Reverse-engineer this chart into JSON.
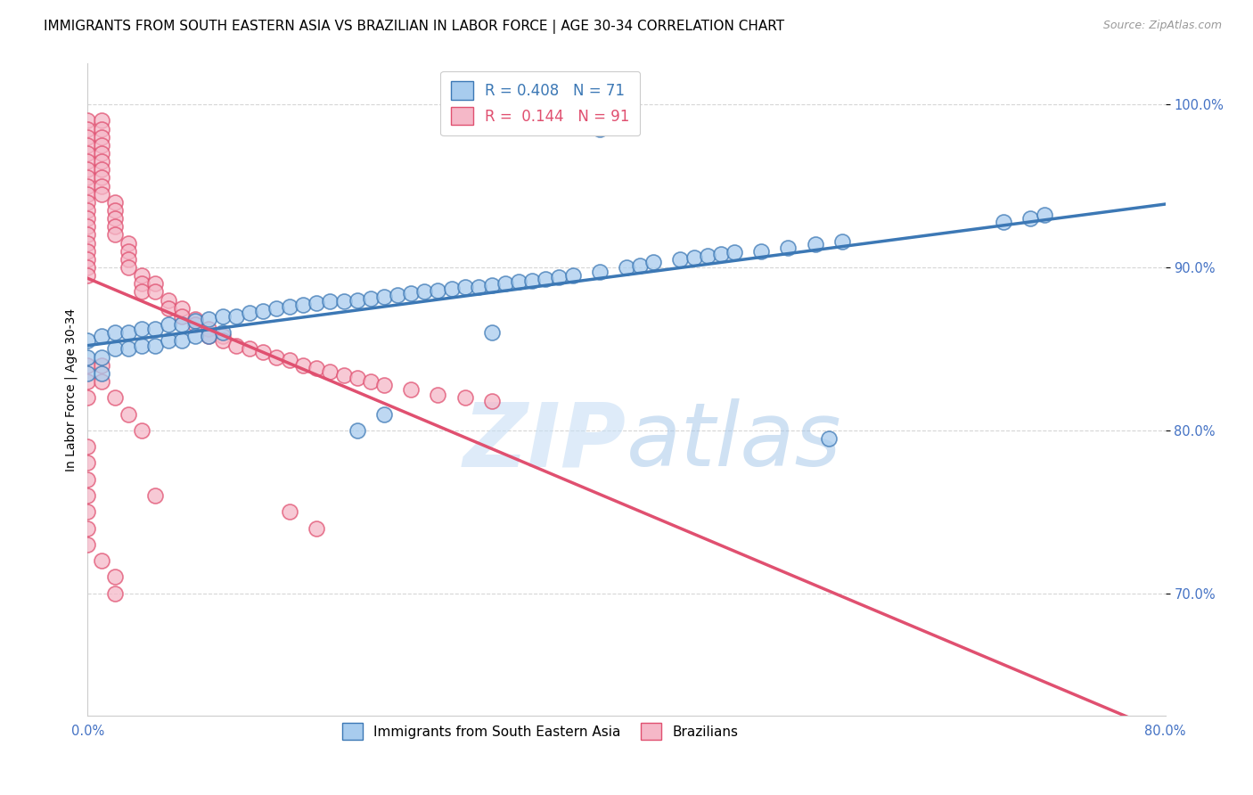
{
  "title": "IMMIGRANTS FROM SOUTH EASTERN ASIA VS BRAZILIAN IN LABOR FORCE | AGE 30-34 CORRELATION CHART",
  "source": "Source: ZipAtlas.com",
  "ylabel": "In Labor Force | Age 30-34",
  "xlim": [
    0.0,
    0.8
  ],
  "ylim": [
    0.625,
    1.025
  ],
  "yticks": [
    0.7,
    0.8,
    0.9,
    1.0
  ],
  "ytick_labels": [
    "70.0%",
    "80.0%",
    "90.0%",
    "100.0%"
  ],
  "xticks": [
    0.0,
    0.1,
    0.2,
    0.3,
    0.4,
    0.5,
    0.6,
    0.7,
    0.8
  ],
  "xtick_labels": [
    "0.0%",
    "",
    "",
    "",
    "",
    "",
    "",
    "",
    "80.0%"
  ],
  "blue_color": "#a8ccee",
  "pink_color": "#f5b8c8",
  "blue_line_color": "#3c78b5",
  "pink_line_color": "#e05070",
  "legend_blue_label": "Immigrants from South Eastern Asia",
  "legend_pink_label": "Brazilians",
  "R_blue": 0.408,
  "N_blue": 71,
  "R_pink": 0.144,
  "N_pink": 91,
  "blue_scatter_x": [
    0.0,
    0.0,
    0.0,
    0.01,
    0.01,
    0.01,
    0.02,
    0.02,
    0.03,
    0.03,
    0.04,
    0.04,
    0.05,
    0.05,
    0.06,
    0.06,
    0.07,
    0.07,
    0.08,
    0.08,
    0.09,
    0.09,
    0.1,
    0.1,
    0.11,
    0.12,
    0.13,
    0.14,
    0.15,
    0.16,
    0.17,
    0.18,
    0.19,
    0.2,
    0.21,
    0.22,
    0.23,
    0.24,
    0.25,
    0.26,
    0.27,
    0.28,
    0.29,
    0.3,
    0.31,
    0.32,
    0.33,
    0.34,
    0.35,
    0.36,
    0.38,
    0.4,
    0.41,
    0.42,
    0.44,
    0.45,
    0.46,
    0.47,
    0.48,
    0.5,
    0.52,
    0.54,
    0.56,
    0.68,
    0.7,
    0.71,
    0.2,
    0.22,
    0.3,
    0.38,
    0.55
  ],
  "blue_scatter_y": [
    0.855,
    0.845,
    0.835,
    0.858,
    0.845,
    0.835,
    0.86,
    0.85,
    0.86,
    0.85,
    0.862,
    0.852,
    0.862,
    0.852,
    0.865,
    0.855,
    0.865,
    0.855,
    0.867,
    0.858,
    0.868,
    0.858,
    0.87,
    0.86,
    0.87,
    0.872,
    0.873,
    0.875,
    0.876,
    0.877,
    0.878,
    0.879,
    0.879,
    0.88,
    0.881,
    0.882,
    0.883,
    0.884,
    0.885,
    0.886,
    0.887,
    0.888,
    0.888,
    0.889,
    0.89,
    0.891,
    0.892,
    0.893,
    0.894,
    0.895,
    0.897,
    0.9,
    0.901,
    0.903,
    0.905,
    0.906,
    0.907,
    0.908,
    0.909,
    0.91,
    0.912,
    0.914,
    0.916,
    0.928,
    0.93,
    0.932,
    0.8,
    0.81,
    0.86,
    0.985,
    0.795
  ],
  "pink_scatter_x": [
    0.0,
    0.0,
    0.0,
    0.0,
    0.0,
    0.0,
    0.0,
    0.0,
    0.0,
    0.0,
    0.0,
    0.0,
    0.0,
    0.0,
    0.0,
    0.0,
    0.0,
    0.0,
    0.0,
    0.0,
    0.01,
    0.01,
    0.01,
    0.01,
    0.01,
    0.01,
    0.01,
    0.01,
    0.01,
    0.01,
    0.02,
    0.02,
    0.02,
    0.02,
    0.02,
    0.03,
    0.03,
    0.03,
    0.03,
    0.04,
    0.04,
    0.04,
    0.05,
    0.05,
    0.06,
    0.06,
    0.07,
    0.07,
    0.08,
    0.08,
    0.09,
    0.09,
    0.1,
    0.1,
    0.11,
    0.12,
    0.13,
    0.14,
    0.15,
    0.16,
    0.17,
    0.18,
    0.19,
    0.2,
    0.21,
    0.22,
    0.24,
    0.26,
    0.28,
    0.3,
    0.0,
    0.0,
    0.0,
    0.01,
    0.01,
    0.02,
    0.03,
    0.04,
    0.0,
    0.0,
    0.0,
    0.0,
    0.0,
    0.0,
    0.0,
    0.01,
    0.02,
    0.02,
    0.05,
    0.15,
    0.17
  ],
  "pink_scatter_y": [
    0.99,
    0.985,
    0.98,
    0.975,
    0.97,
    0.965,
    0.96,
    0.955,
    0.95,
    0.945,
    0.94,
    0.935,
    0.93,
    0.925,
    0.92,
    0.915,
    0.91,
    0.905,
    0.9,
    0.895,
    0.99,
    0.985,
    0.98,
    0.975,
    0.97,
    0.965,
    0.96,
    0.955,
    0.95,
    0.945,
    0.94,
    0.935,
    0.93,
    0.925,
    0.92,
    0.915,
    0.91,
    0.905,
    0.9,
    0.895,
    0.89,
    0.885,
    0.89,
    0.885,
    0.88,
    0.875,
    0.875,
    0.87,
    0.868,
    0.865,
    0.862,
    0.858,
    0.858,
    0.855,
    0.852,
    0.85,
    0.848,
    0.845,
    0.843,
    0.84,
    0.838,
    0.836,
    0.834,
    0.832,
    0.83,
    0.828,
    0.825,
    0.822,
    0.82,
    0.818,
    0.84,
    0.83,
    0.82,
    0.84,
    0.83,
    0.82,
    0.81,
    0.8,
    0.79,
    0.78,
    0.77,
    0.76,
    0.75,
    0.74,
    0.73,
    0.72,
    0.71,
    0.7,
    0.76,
    0.75,
    0.74
  ],
  "watermark_zip": "ZIP",
  "watermark_atlas": "atlas",
  "background_color": "#ffffff",
  "axis_color": "#4472c4",
  "grid_color": "#cccccc",
  "title_fontsize": 11,
  "label_fontsize": 10,
  "tick_fontsize": 10.5
}
